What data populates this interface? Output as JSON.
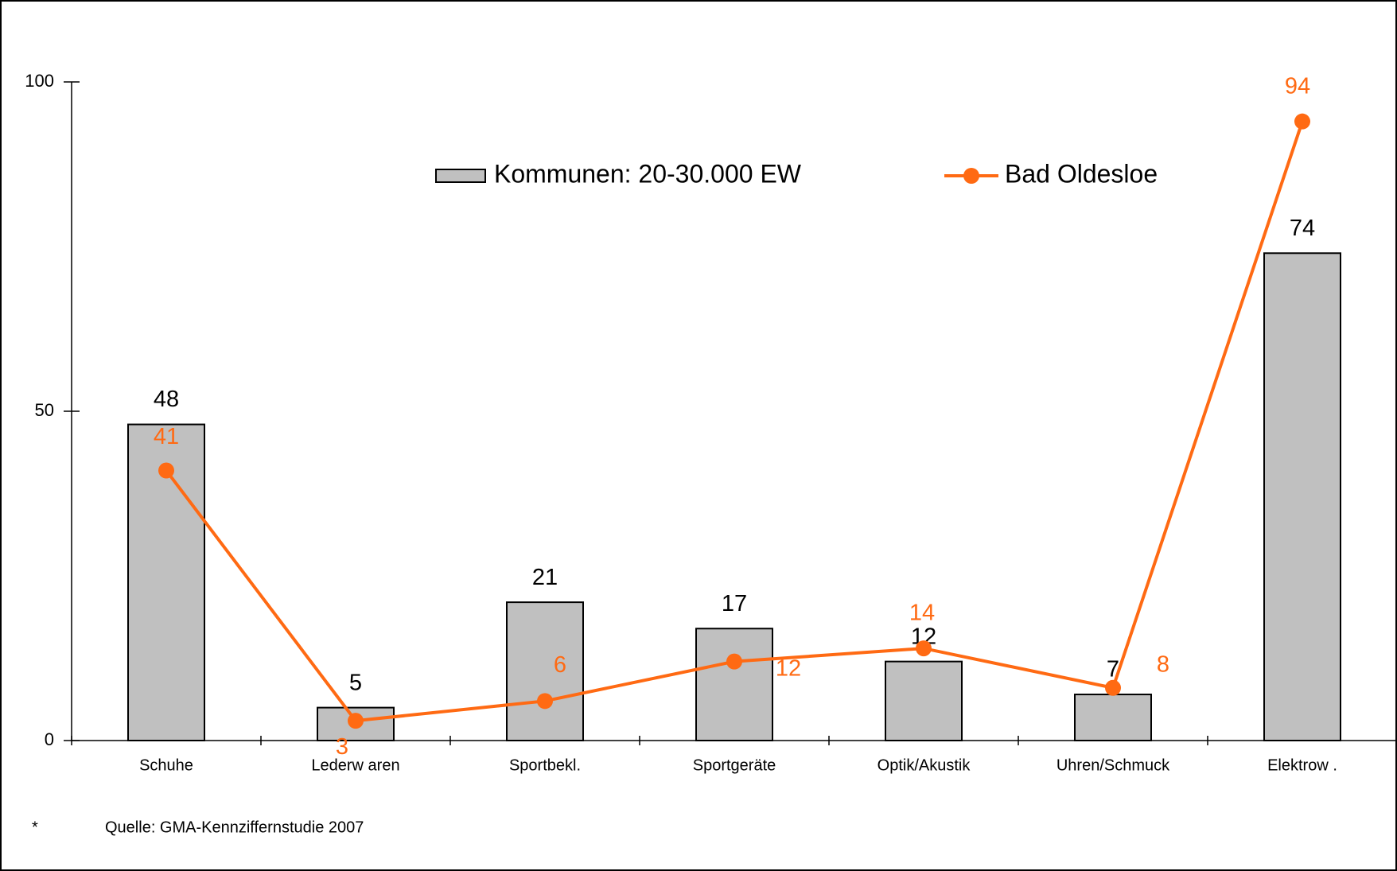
{
  "chart_data": {
    "type": "bar+line",
    "categories": [
      "Schuhe",
      "Lederw aren",
      "Sportbekl.",
      "Sportgeräte",
      "Optik/Akustik",
      "Uhren/Schmuck",
      "Elektrow ."
    ],
    "series": [
      {
        "name": "Kommunen: 20-30.000 EW",
        "color": "#c0c0c0",
        "type": "bar",
        "values": [
          48,
          5,
          21,
          17,
          12,
          7,
          74
        ]
      },
      {
        "name": "Bad Oldesloe",
        "color": "#ff6a13",
        "type": "line",
        "values": [
          41,
          3,
          6,
          12,
          14,
          8,
          94
        ]
      }
    ],
    "ylim": [
      0,
      100
    ],
    "yticks": [
      0,
      50,
      100
    ],
    "footnote_mark": "*",
    "footnote": "Quelle: GMA-Kennziffernstudie 2007"
  }
}
